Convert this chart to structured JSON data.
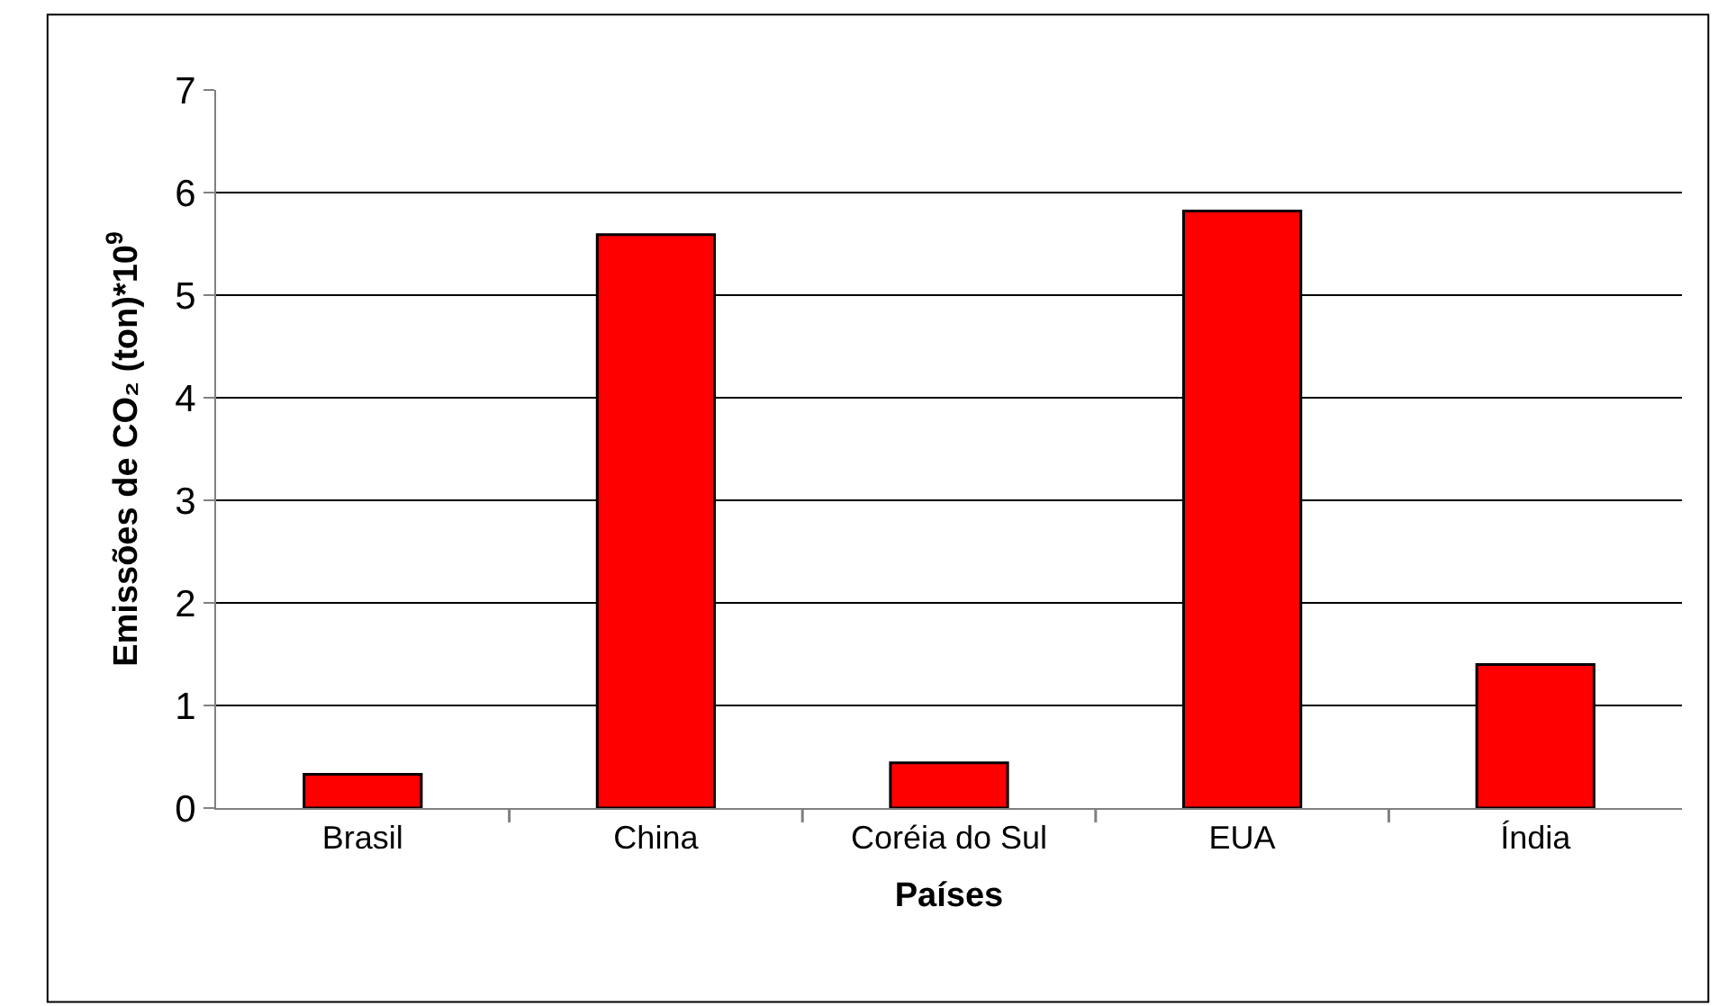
{
  "chart_data": {
    "type": "bar",
    "xlabel": "Países",
    "ylabel": "Emissões de CO₂ (ton)*10$^{9}$",
    "categories": [
      "Brasil",
      "China",
      "Coréia do Sul",
      "EUA",
      "Índia"
    ],
    "values": [
      0.33,
      5.59,
      0.44,
      5.82,
      1.4
    ],
    "color": "#ff0000",
    "ylim": [
      0,
      7
    ],
    "yticks": [
      0,
      1,
      2,
      3,
      4,
      5,
      6,
      7
    ],
    "grid": "y"
  }
}
